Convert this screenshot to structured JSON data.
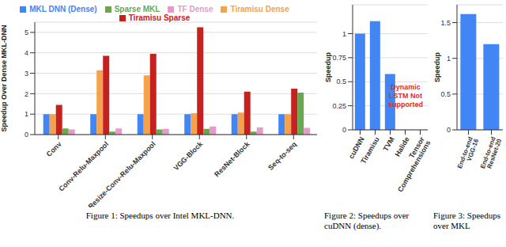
{
  "chart_data": [
    {
      "type": "bar",
      "title": "Figure 1: Speedups over Intel MKL-DNN.",
      "ylabel": "Speedup Over Dense MKL-DNN",
      "categories": [
        "Conv",
        "Conv-Relu-Maxpool",
        "Resize-Conv-Relu-Maxpool",
        "VGG-Block",
        "ResNet-Block",
        "Seq-to-seq"
      ],
      "series": [
        {
          "name": "MKL DNN (Dense)",
          "color": "#4285f4",
          "values": [
            1,
            1,
            1,
            1,
            1,
            1
          ]
        },
        {
          "name": "Tiramisu Dense",
          "color": "#f4a24c",
          "values": [
            1,
            3.15,
            2.9,
            1.05,
            1.07,
            1
          ]
        },
        {
          "name": "Tiramisu Sparse",
          "color": "#c5221f",
          "values": [
            1.45,
            3.85,
            3.95,
            5.25,
            2.1,
            2.25
          ]
        },
        {
          "name": "Sparse MKL",
          "color": "#6aa84f",
          "values": [
            0.3,
            0.15,
            0.25,
            0.28,
            0.15,
            2.05
          ]
        },
        {
          "name": "TF Dense",
          "color": "#e69ac9",
          "values": [
            0.25,
            0.3,
            0.28,
            0.4,
            0.35,
            0.33
          ]
        }
      ],
      "ylim": [
        0,
        5.5
      ],
      "yticks": [
        0,
        1,
        2,
        3,
        4,
        5
      ],
      "grid": true,
      "legend": "top"
    },
    {
      "type": "bar",
      "title": "Figure 2: Speedups over cuDNN (dense).",
      "ylabel": "Speedup",
      "categories": [
        "cuDNN",
        "Tiramisu",
        "TVM",
        "Halide",
        "Tensor Comprehensions"
      ],
      "values": [
        1,
        1.13,
        0.58,
        null,
        null
      ],
      "color": "#4285f4",
      "annotation": "Dynamic LSTM Not supported",
      "ylim": [
        0,
        1.3
      ],
      "yticks": [
        0,
        0.25,
        0.5,
        0.75,
        1
      ],
      "grid": true
    },
    {
      "type": "bar",
      "title": "Figure 3: Speedups over MKL",
      "ylabel": "Speedup",
      "categories": [
        "End-to-end VGG-16",
        "End-to-end ResNet-20"
      ],
      "values": [
        1.62,
        1.2
      ],
      "color": "#4285f4",
      "ylim": [
        0,
        1.75
      ],
      "yticks": [
        0,
        0.5,
        1,
        1.5
      ],
      "grid": true
    }
  ]
}
